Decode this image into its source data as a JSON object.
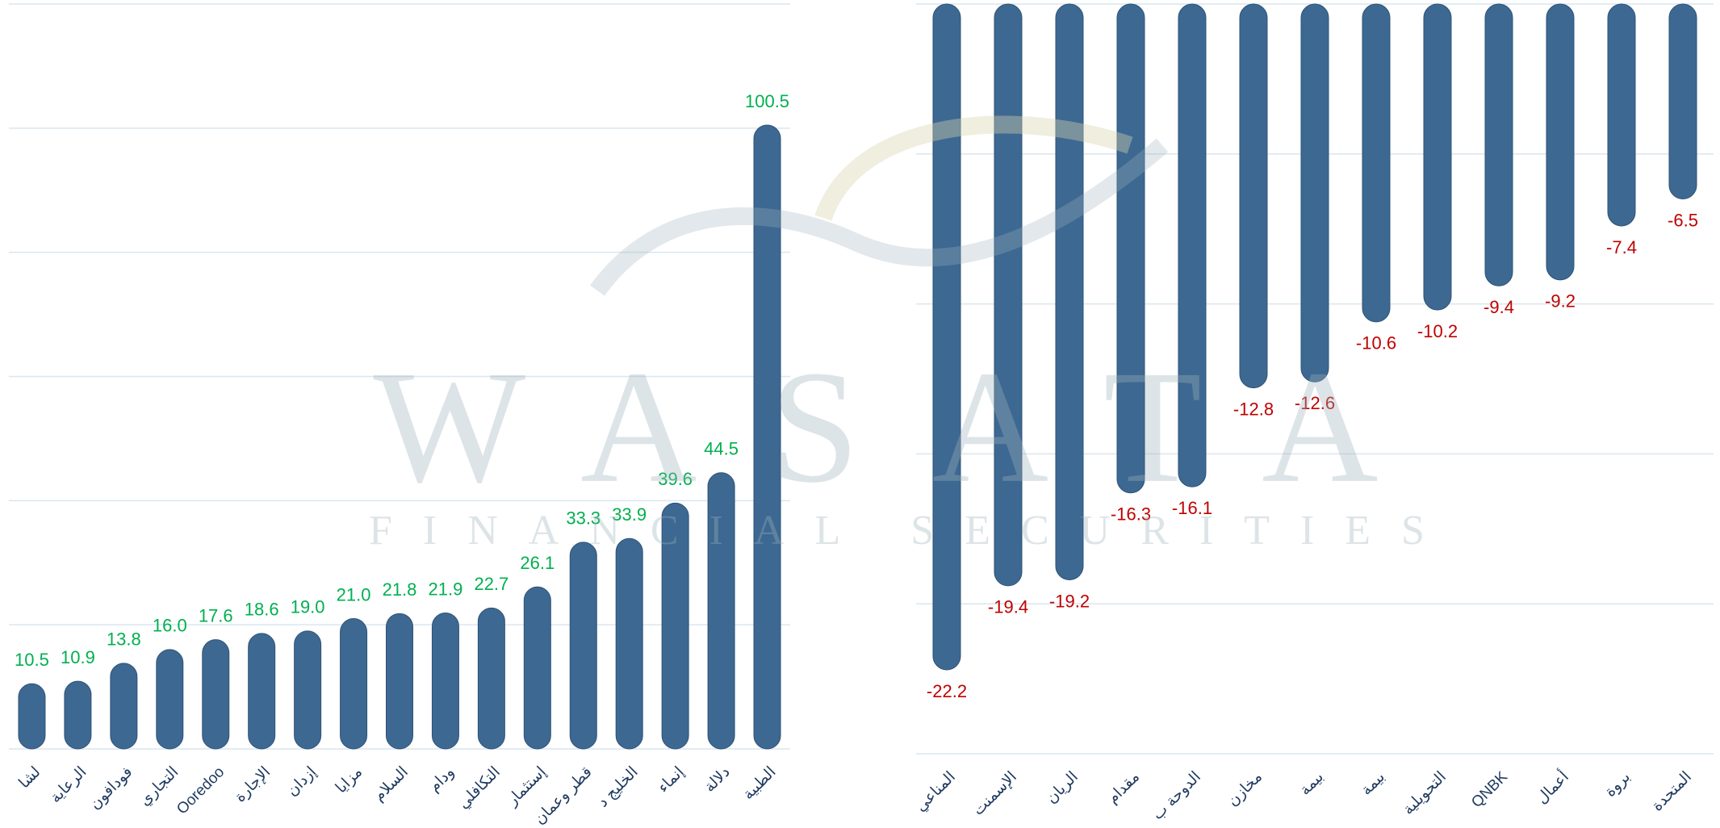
{
  "watermark": {
    "title": "WASATA",
    "subtitle": "FINANCIAL SECURITIES"
  },
  "chart_data": [
    {
      "type": "bar",
      "color": "#3d6891",
      "label_color": "#00b050",
      "grid": true,
      "categories": [
        "لشا",
        "الرعاية",
        "فودافون",
        "التجاري",
        "Ooredoo",
        "الإجارة",
        "إزدان",
        "مزايا",
        "السلام",
        "ودام",
        "التكافلي",
        "إستثمار",
        "قطر وعمان",
        "الخليج د",
        "إنماء",
        "دلالة",
        "الطبية"
      ],
      "values": [
        10.5,
        10.9,
        13.8,
        16.0,
        17.6,
        18.6,
        19.0,
        21.0,
        21.8,
        21.9,
        22.7,
        26.1,
        33.3,
        33.9,
        39.6,
        44.5,
        100.5
      ],
      "value_labels": [
        "10.5",
        "10.9",
        "13.8",
        "16.0",
        "17.6",
        "18.6",
        "19.0",
        "21.0",
        "21.8",
        "21.9",
        "22.7",
        "26.1",
        "33.3",
        "33.9",
        "39.6",
        "44.5",
        "100.5"
      ],
      "ylim": [
        0,
        120
      ],
      "yticks": [
        0,
        20,
        40,
        60,
        80,
        100,
        120
      ]
    },
    {
      "type": "bar",
      "color": "#3d6891",
      "label_color": "#c00000",
      "grid": true,
      "categories": [
        "المناعي",
        "الإسمنت",
        "الريان",
        "مقدام",
        "الدوحة ب",
        "مخازن",
        "بيمة",
        "بيمة",
        "التحويلية",
        "QNBK",
        "أعمال",
        "بروة",
        "المتحدة"
      ],
      "values": [
        -22.2,
        -19.4,
        -19.2,
        -16.3,
        -16.1,
        -12.8,
        -12.6,
        -10.6,
        -10.2,
        -9.4,
        -9.2,
        -7.4,
        -6.5
      ],
      "ylim": [
        -25,
        0
      ],
      "yticks": [
        -25,
        -20,
        -15,
        -10,
        -5,
        0
      ]
    }
  ]
}
